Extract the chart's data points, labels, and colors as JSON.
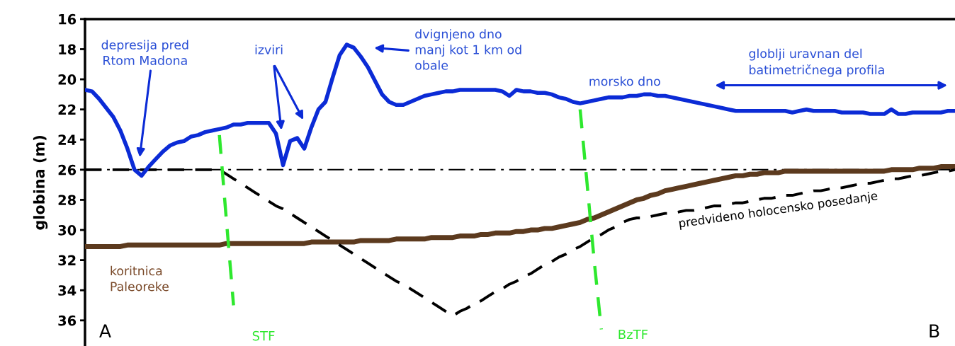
{
  "chart_data": {
    "type": "line",
    "ylabel": "globina (m)",
    "categories": [
      null,
      null,
      null,
      null,
      null,
      null,
      null,
      null,
      null,
      null,
      null,
      null,
      null,
      null,
      null,
      null,
      null,
      null,
      null,
      null,
      null,
      null,
      null,
      null,
      null,
      null,
      null,
      null,
      null,
      null,
      null,
      null,
      null,
      null,
      null,
      null,
      null,
      null,
      null,
      null,
      null,
      null,
      null,
      null,
      null,
      null,
      null,
      null,
      null,
      null,
      null,
      null,
      null,
      null,
      null,
      null,
      null,
      null,
      null,
      null,
      null,
      null,
      null,
      null,
      null,
      null,
      null,
      null,
      null,
      null,
      null,
      null,
      null,
      null,
      null,
      null,
      null,
      null,
      null,
      null,
      null,
      null,
      null,
      null,
      null,
      null,
      null,
      null,
      null,
      null,
      null,
      null,
      null,
      null,
      null,
      null,
      null,
      null,
      null,
      null,
      null,
      null,
      null,
      null,
      null,
      null,
      null,
      null,
      null,
      null,
      null,
      null,
      null,
      null,
      null,
      null,
      null,
      null,
      null,
      null,
      null,
      null,
      null,
      null
    ],
    "ylim": [
      37.7,
      16
    ],
    "yticks": [
      16,
      18,
      20,
      22,
      24,
      26,
      28,
      30,
      32,
      34,
      36
    ],
    "tick_labels": "y",
    "grid": false,
    "marker": "none",
    "series": [
      {
        "color": "#0b2bd6",
        "line_style": "solid",
        "values": [
          20.7,
          20.8,
          21.3,
          21.9,
          22.5,
          23.4,
          24.6,
          26.0,
          26.4,
          25.8,
          25.3,
          24.8,
          24.4,
          24.2,
          24.1,
          23.8,
          23.7,
          23.5,
          23.4,
          23.3,
          23.2,
          23.0,
          23.0,
          22.9,
          22.9,
          22.9,
          22.9,
          23.6,
          25.7,
          24.1,
          23.9,
          24.6,
          23.2,
          22.0,
          21.5,
          19.9,
          18.4,
          17.7,
          17.9,
          18.5,
          19.2,
          20.1,
          21.0,
          21.5,
          21.7,
          21.7,
          21.5,
          21.3,
          21.1,
          21.0,
          20.9,
          20.8,
          20.8,
          20.7,
          20.7,
          20.7,
          20.7,
          20.7,
          20.7,
          20.8,
          21.1,
          20.7,
          20.8,
          20.8,
          20.9,
          20.9,
          21.0,
          21.2,
          21.3,
          21.5,
          21.6,
          21.5,
          21.4,
          21.3,
          21.2,
          21.2,
          21.2,
          21.1,
          21.1,
          21.0,
          21.0,
          21.1,
          21.1,
          21.2,
          21.3,
          21.4,
          21.5,
          21.6,
          21.7,
          21.8,
          21.9,
          22.0,
          22.1,
          22.1,
          22.1,
          22.1,
          22.1,
          22.1,
          22.1,
          22.1,
          22.2,
          22.1,
          22.0,
          22.1,
          22.1,
          22.1,
          22.1,
          22.2,
          22.2,
          22.2,
          22.2,
          22.3,
          22.3,
          22.3,
          22.0,
          22.3,
          22.3,
          22.2,
          22.2,
          22.2,
          22.2,
          22.2,
          22.1,
          22.1
        ]
      },
      {
        "color": "#5c3a1e",
        "line_style": "solid",
        "values": [
          31.1,
          31.1,
          31.1,
          31.1,
          31.1,
          31.1,
          31.0,
          31.0,
          31.0,
          31.0,
          31.0,
          31.0,
          31.0,
          31.0,
          31.0,
          31.0,
          31.0,
          31.0,
          31.0,
          31.0,
          30.9,
          30.9,
          30.9,
          30.9,
          30.9,
          30.9,
          30.9,
          30.9,
          30.9,
          30.9,
          30.9,
          30.9,
          30.8,
          30.8,
          30.8,
          30.8,
          30.8,
          30.8,
          30.8,
          30.7,
          30.7,
          30.7,
          30.7,
          30.7,
          30.6,
          30.6,
          30.6,
          30.6,
          30.6,
          30.5,
          30.5,
          30.5,
          30.5,
          30.4,
          30.4,
          30.4,
          30.3,
          30.3,
          30.2,
          30.2,
          30.2,
          30.1,
          30.1,
          30.0,
          30.0,
          29.9,
          29.9,
          29.8,
          29.7,
          29.6,
          29.5,
          29.3,
          29.2,
          29.0,
          28.8,
          28.6,
          28.4,
          28.2,
          28.0,
          27.9,
          27.7,
          27.6,
          27.4,
          27.3,
          27.2,
          27.1,
          27.0,
          26.9,
          26.8,
          26.7,
          26.6,
          26.5,
          26.4,
          26.4,
          26.3,
          26.3,
          26.2,
          26.2,
          26.2,
          26.1,
          26.1,
          26.1,
          26.1,
          26.1,
          26.1,
          26.1,
          26.1,
          26.1,
          26.1,
          26.1,
          26.1,
          26.1,
          26.1,
          26.1,
          26.0,
          26.0,
          26.0,
          26.0,
          25.9,
          25.9,
          25.9,
          25.8,
          25.8,
          25.8
        ]
      },
      {
        "color": "#000000",
        "line_style": "dashed",
        "values": [
          26.0,
          26.0,
          26.0,
          26.0,
          26.0,
          26.0,
          26.0,
          26.0,
          26.0,
          26.0,
          26.0,
          26.0,
          26.0,
          26.0,
          26.0,
          26.0,
          26.0,
          26.0,
          26.0,
          26.0,
          26.3,
          26.6,
          26.9,
          27.2,
          27.5,
          27.8,
          28.1,
          28.4,
          28.6,
          28.9,
          29.2,
          29.5,
          29.8,
          30.1,
          30.4,
          30.7,
          31.0,
          31.3,
          31.6,
          31.9,
          32.2,
          32.5,
          32.8,
          33.1,
          33.4,
          33.6,
          33.9,
          34.2,
          34.5,
          34.8,
          35.1,
          35.4,
          35.7,
          35.4,
          35.2,
          34.9,
          34.7,
          34.4,
          34.1,
          33.9,
          33.6,
          33.4,
          33.1,
          32.9,
          32.6,
          32.3,
          32.1,
          31.8,
          31.6,
          31.3,
          31.1,
          30.8,
          30.5,
          30.3,
          30.0,
          29.8,
          29.5,
          29.3,
          29.2,
          29.2,
          29.1,
          29.0,
          28.9,
          28.9,
          28.8,
          28.7,
          28.7,
          28.6,
          28.5,
          28.4,
          28.4,
          28.3,
          28.2,
          28.2,
          28.1,
          28.0,
          27.9,
          27.9,
          27.8,
          27.7,
          27.7,
          27.6,
          27.5,
          27.4,
          27.4,
          27.3,
          27.2,
          27.2,
          27.1,
          27.0,
          26.9,
          26.9,
          26.8,
          26.7,
          26.6,
          26.6,
          26.5,
          26.4,
          26.4,
          26.3,
          26.2,
          26.1,
          26.1,
          26.0
        ]
      },
      {
        "color": "#2ee82e",
        "line_style": "dashed",
        "values": [
          null,
          null,
          null,
          null,
          null,
          null,
          null,
          null,
          null,
          null,
          null,
          null,
          null,
          null,
          null,
          null,
          null,
          null,
          null,
          23.7,
          29.4,
          35.0,
          null,
          null,
          null,
          null,
          null,
          null,
          null,
          null,
          null,
          null,
          null,
          null,
          null,
          null,
          null,
          null,
          null,
          null,
          null,
          null,
          null,
          null,
          null,
          null,
          null,
          null,
          null,
          null,
          null,
          null,
          null,
          null,
          null,
          null,
          null,
          null,
          null,
          null,
          null,
          null,
          null,
          null,
          null,
          null,
          null,
          null,
          null,
          null,
          null,
          null,
          null,
          null,
          null,
          null,
          null,
          null,
          null,
          null,
          null,
          null,
          null,
          null,
          null,
          null,
          null,
          null,
          null,
          null,
          null,
          null,
          null,
          null,
          null,
          null,
          null,
          null,
          null,
          null,
          null,
          null,
          null,
          null,
          null,
          null,
          null,
          null,
          null,
          null,
          null,
          null,
          null,
          null,
          null,
          null,
          null,
          null,
          null,
          null,
          null,
          null,
          null,
          null
        ]
      },
      {
        "color": "#2ee82e",
        "line_style": "dashed",
        "values": [
          null,
          null,
          null,
          null,
          null,
          null,
          null,
          null,
          null,
          null,
          null,
          null,
          null,
          null,
          null,
          null,
          null,
          null,
          null,
          null,
          null,
          null,
          null,
          null,
          null,
          null,
          null,
          null,
          null,
          null,
          null,
          null,
          null,
          null,
          null,
          null,
          null,
          null,
          null,
          null,
          null,
          null,
          null,
          null,
          null,
          null,
          null,
          null,
          null,
          null,
          null,
          null,
          null,
          null,
          null,
          null,
          null,
          null,
          null,
          null,
          null,
          null,
          null,
          null,
          null,
          null,
          null,
          null,
          null,
          null,
          22.0,
          27.0,
          32.1,
          36.6,
          null,
          null,
          null,
          null,
          null,
          null,
          null,
          null,
          null,
          null,
          null,
          null,
          null,
          null,
          null,
          null,
          null,
          null,
          null,
          null,
          null,
          null,
          null,
          null,
          null,
          null,
          null,
          null,
          null,
          null,
          null,
          null,
          null,
          null,
          null,
          null,
          null,
          null,
          null,
          null,
          null,
          null,
          null,
          null,
          null,
          null,
          null,
          null,
          null,
          null
        ]
      }
    ],
    "ref_lines": [
      {
        "axis": "y",
        "value": 26,
        "color": "#000000",
        "line_style": "dashdot"
      }
    ],
    "annotations": [
      "depresija pred\nRtom Madona",
      "izviri",
      "dvignjeno dno\nmanj kot 1 km od\nobale",
      "morsko dno",
      "globlji uravnan del\nbatimetričnega profila",
      "predvideno holocensko posedanje",
      "koritnica\nPaleoreke",
      "STF",
      "BzTF",
      "A",
      "B"
    ]
  }
}
